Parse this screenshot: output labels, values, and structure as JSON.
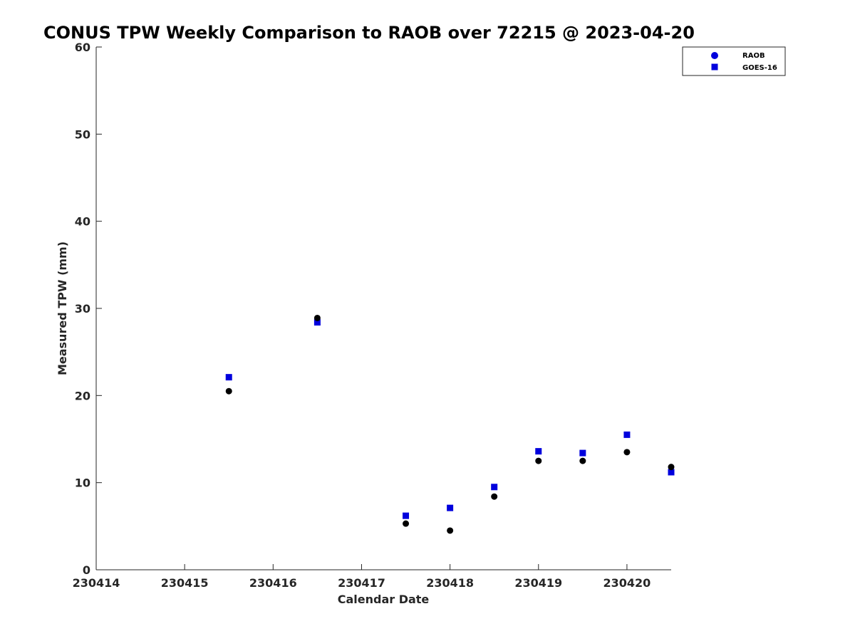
{
  "chart_data": {
    "type": "scatter",
    "title": "CONUS TPW Weekly Comparison to RAOB over 72215 @ 2023-04-20",
    "xlabel": "Calendar Date",
    "ylabel": "Measured TPW (mm)",
    "xlim": [
      230414,
      230420.5
    ],
    "ylim": [
      0,
      60
    ],
    "x_ticks": [
      "230414",
      "230415",
      "230416",
      "230417",
      "230418",
      "230419",
      "230420"
    ],
    "y_ticks": [
      "0",
      "10",
      "20",
      "30",
      "40",
      "50",
      "60"
    ],
    "grid": false,
    "legend_position": "top-right",
    "series": [
      {
        "name": "RAOB",
        "marker": "circle",
        "color": "#000000",
        "legend_color": "#0000dd",
        "points": [
          {
            "x": 230415.5,
            "y": 20.5
          },
          {
            "x": 230416.5,
            "y": 28.9
          },
          {
            "x": 230417.5,
            "y": 5.3
          },
          {
            "x": 230418.0,
            "y": 4.5
          },
          {
            "x": 230418.5,
            "y": 8.4
          },
          {
            "x": 230419.0,
            "y": 12.5
          },
          {
            "x": 230419.5,
            "y": 12.5
          },
          {
            "x": 230420.0,
            "y": 13.5
          },
          {
            "x": 230420.5,
            "y": 11.8
          }
        ]
      },
      {
        "name": "GOES-16",
        "marker": "square",
        "color": "#0000dd",
        "legend_color": "#0000dd",
        "points": [
          {
            "x": 230415.5,
            "y": 22.1
          },
          {
            "x": 230416.5,
            "y": 28.4
          },
          {
            "x": 230417.5,
            "y": 6.2
          },
          {
            "x": 230418.0,
            "y": 7.1
          },
          {
            "x": 230418.5,
            "y": 9.5
          },
          {
            "x": 230419.0,
            "y": 13.6
          },
          {
            "x": 230419.5,
            "y": 13.4
          },
          {
            "x": 230420.0,
            "y": 15.5
          },
          {
            "x": 230420.5,
            "y": 11.2
          }
        ]
      }
    ]
  }
}
